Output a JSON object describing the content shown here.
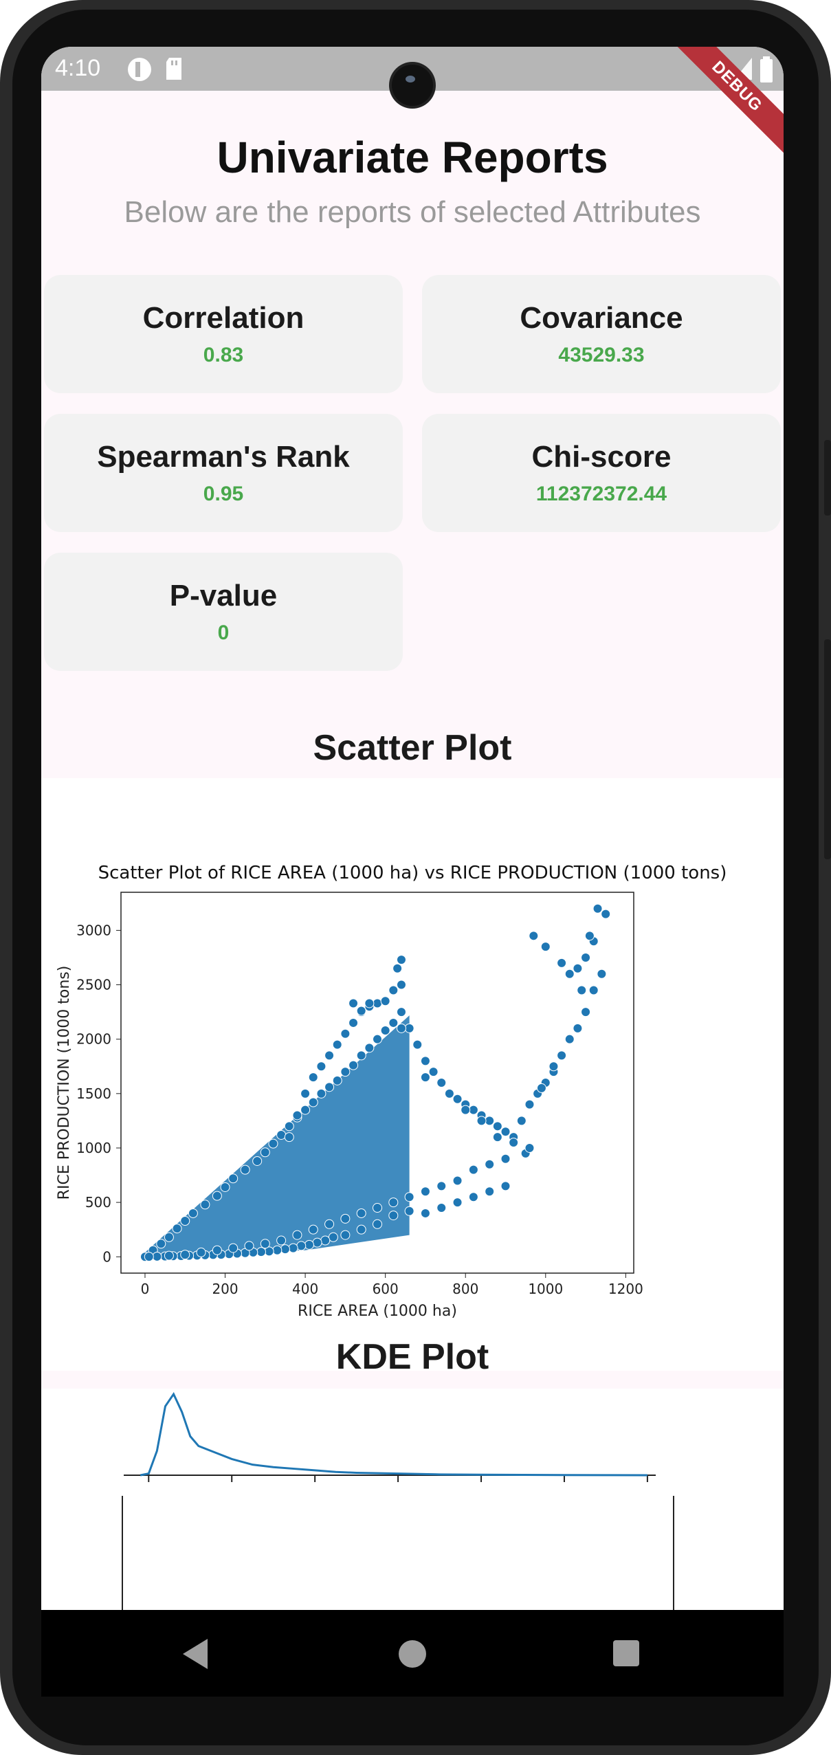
{
  "status_bar": {
    "time": "4:10",
    "debug_banner": "DEBUG"
  },
  "header": {
    "title": "Univariate Reports",
    "subtitle": "Below are the reports of selected Attributes"
  },
  "stats": [
    {
      "label": "Correlation",
      "value": "0.83"
    },
    {
      "label": "Covariance",
      "value": "43529.33"
    },
    {
      "label": "Spearman's Rank",
      "value": "0.95"
    },
    {
      "label": "Chi-score",
      "value": "112372372.44"
    },
    {
      "label": "P-value",
      "value": "0"
    }
  ],
  "sections": {
    "scatter_title": "Scatter Plot",
    "kde_title": "KDE Plot"
  },
  "colors": {
    "accent_green": "#49a84c",
    "marker_blue": "#1f77b4",
    "debug_red": "#b6323a"
  },
  "chart_data": [
    {
      "type": "scatter",
      "title": "Scatter Plot of RICE AREA (1000 ha) vs RICE PRODUCTION (1000 tons)",
      "xlabel": "RICE AREA (1000 ha)",
      "ylabel": "RICE PRODUCTION (1000 tons)",
      "xlim": [
        -60,
        1220
      ],
      "ylim": [
        -150,
        3350
      ],
      "xticks": [
        "0",
        "200",
        "400",
        "600",
        "800",
        "1000",
        "1200"
      ],
      "yticks": [
        "0",
        "500",
        "1000",
        "1500",
        "2000",
        "2500",
        "3000"
      ],
      "x": [
        0,
        20,
        40,
        60,
        80,
        100,
        120,
        150,
        180,
        200,
        220,
        250,
        280,
        300,
        320,
        340,
        360,
        380,
        400,
        420,
        440,
        460,
        480,
        500,
        520,
        540,
        560,
        580,
        600,
        620,
        640,
        360,
        380,
        400,
        420,
        440,
        460,
        480,
        500,
        520,
        540,
        560,
        580,
        600,
        620,
        640,
        660,
        680,
        700,
        720,
        740,
        760,
        780,
        800,
        820,
        840,
        860,
        880,
        900,
        920,
        940,
        960,
        980,
        1000,
        1020,
        1040,
        1060,
        1080,
        1100,
        1120,
        1140,
        970,
        1000,
        1040,
        1060,
        1080,
        1100,
        1120,
        1130,
        1150,
        1110,
        1090,
        1060,
        1020,
        990,
        950,
        900,
        860,
        820,
        780,
        740,
        700,
        660,
        620,
        580,
        540,
        500,
        470,
        450,
        430,
        410,
        390,
        370,
        350,
        330,
        310,
        290,
        270,
        250,
        230,
        210,
        190,
        170,
        150,
        130,
        110,
        90,
        70,
        50,
        30,
        10,
        640,
        630,
        560,
        540,
        520,
        640,
        700,
        760,
        800,
        840,
        880,
        920,
        960,
        900,
        860,
        820,
        780,
        740,
        700,
        660,
        620,
        580,
        540,
        500,
        460,
        420,
        380,
        340,
        300,
        260,
        220,
        180,
        140,
        100,
        60
      ],
      "y": [
        0,
        60,
        120,
        180,
        260,
        330,
        400,
        480,
        560,
        640,
        720,
        800,
        880,
        960,
        1040,
        1120,
        1200,
        1280,
        1350,
        1420,
        1500,
        1560,
        1620,
        1700,
        1760,
        1850,
        1920,
        2000,
        2080,
        2150,
        2250,
        1100,
        1300,
        1500,
        1650,
        1750,
        1850,
        1950,
        2050,
        2150,
        2250,
        2300,
        2330,
        2350,
        2450,
        2500,
        2100,
        1950,
        1800,
        1700,
        1600,
        1500,
        1450,
        1400,
        1350,
        1300,
        1250,
        1200,
        1150,
        1100,
        1250,
        1400,
        1500,
        1600,
        1700,
        1850,
        2000,
        2100,
        2250,
        2450,
        2600,
        2950,
        2850,
        2700,
        2600,
        2650,
        2750,
        2900,
        3200,
        3150,
        2950,
        2450,
        2000,
        1750,
        1550,
        950,
        650,
        600,
        550,
        500,
        450,
        400,
        420,
        380,
        300,
        250,
        200,
        180,
        150,
        130,
        110,
        100,
        80,
        70,
        60,
        50,
        45,
        40,
        35,
        30,
        25,
        20,
        18,
        15,
        12,
        10,
        8,
        6,
        4,
        2,
        1,
        2730,
        2650,
        2330,
        2260,
        2330,
        2100,
        1650,
        1500,
        1350,
        1250,
        1100,
        1050,
        1000,
        900,
        850,
        800,
        700,
        650,
        600,
        550,
        500,
        450,
        400,
        350,
        300,
        250,
        200,
        150,
        120,
        100,
        80,
        60,
        40,
        20,
        10
      ]
    },
    {
      "type": "area",
      "title": "",
      "xlabel": "",
      "ylabel": "",
      "xticks": [],
      "yticks": [
        "3000"
      ],
      "x": [
        -20,
        0,
        20,
        40,
        60,
        80,
        100,
        120,
        150,
        200,
        250,
        300,
        350,
        400,
        450,
        500,
        600,
        700,
        800,
        900,
        1000,
        1100,
        1200
      ],
      "y": [
        0,
        0.02,
        0.3,
        0.85,
        1.0,
        0.78,
        0.48,
        0.36,
        0.3,
        0.2,
        0.13,
        0.1,
        0.08,
        0.06,
        0.04,
        0.03,
        0.02,
        0.01,
        0.006,
        0.004,
        0.002,
        0.001,
        0.0
      ]
    }
  ],
  "nav": {
    "back": "back-icon",
    "home": "home-icon",
    "recents": "recents-icon"
  }
}
